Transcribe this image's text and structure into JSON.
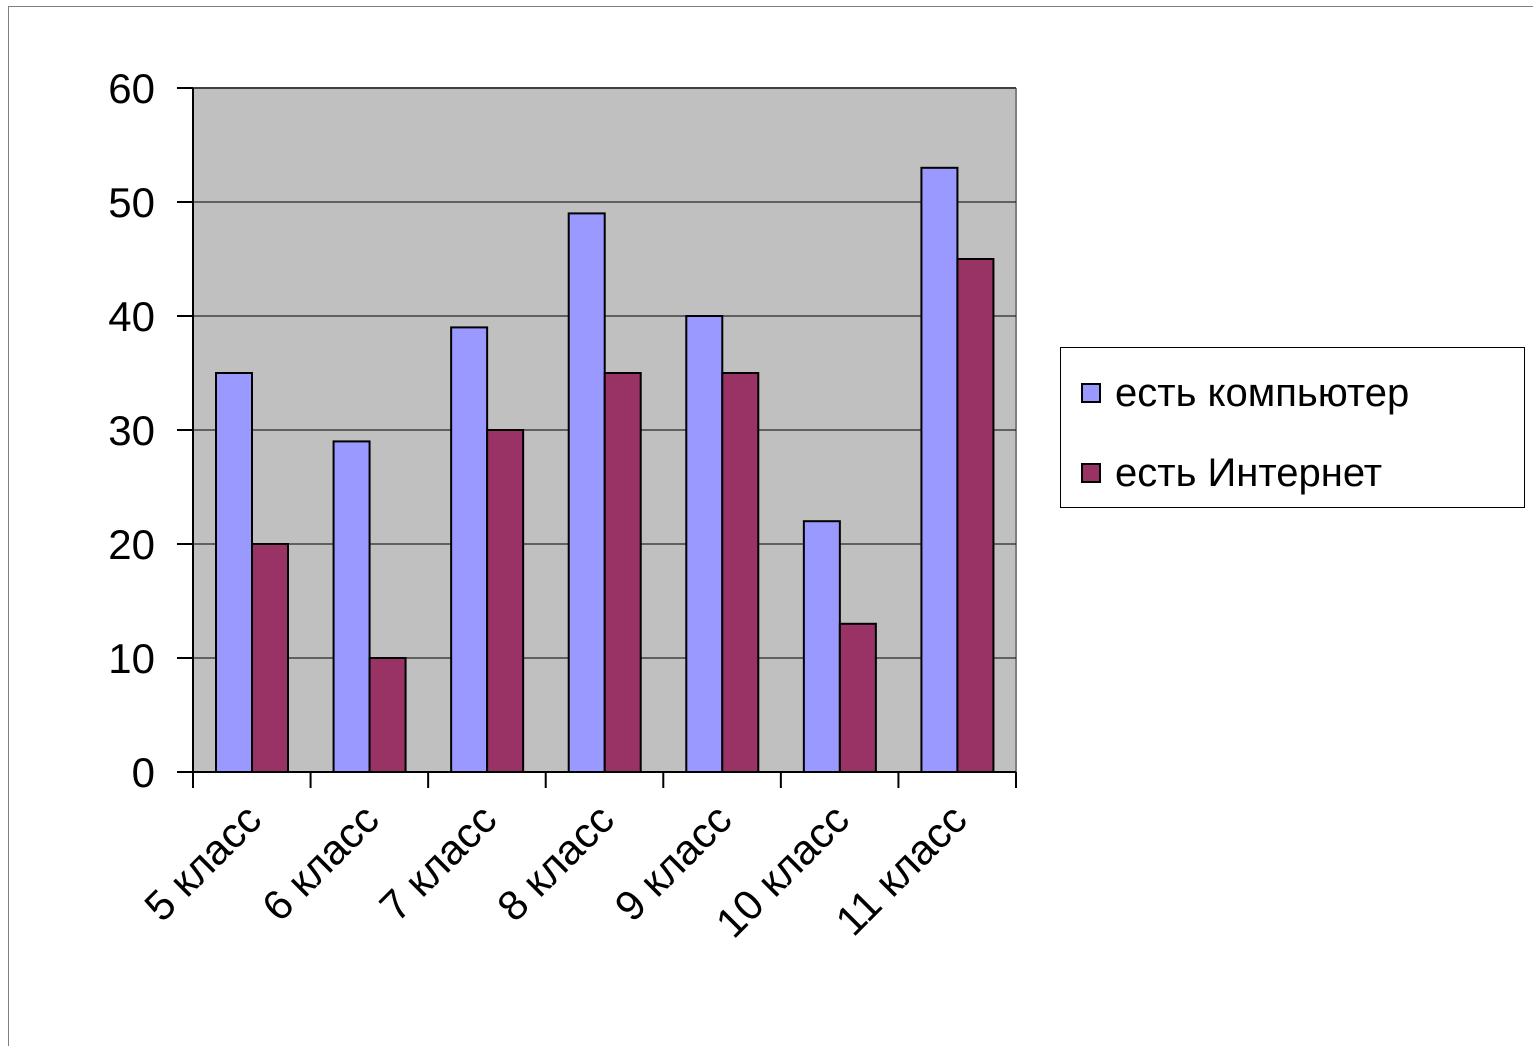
{
  "chart_data": {
    "type": "bar",
    "categories": [
      "5 класс",
      "6 класс",
      "7 класс",
      "8 класс",
      "9 класс",
      "10 класс",
      "11 класс"
    ],
    "series": [
      {
        "name": "есть компьютер",
        "color": "#9999ff",
        "values": [
          35,
          29,
          39,
          49,
          40,
          22,
          53
        ]
      },
      {
        "name": "есть Интернет",
        "color": "#993366",
        "values": [
          20,
          10,
          30,
          35,
          35,
          13,
          45
        ]
      }
    ],
    "y_ticks": [
      "0",
      "10",
      "20",
      "30",
      "40",
      "50",
      "60"
    ],
    "ylim": [
      0,
      60
    ],
    "grid": true,
    "plot_background": "#c0c0c0",
    "legend_position": "right",
    "title": "",
    "xlabel": "",
    "ylabel": ""
  }
}
